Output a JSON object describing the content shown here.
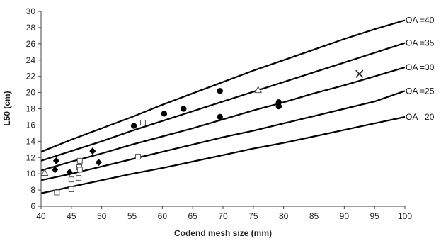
{
  "chart_data": {
    "type": "scatter",
    "xlabel": "Codend mesh size (mm)",
    "ylabel": "L50 (cm)",
    "xlim": [
      40,
      100
    ],
    "ylim": [
      6,
      30
    ],
    "x_ticks": [
      "40",
      "45",
      "50",
      "55",
      "60",
      "65",
      "70",
      "75",
      "80",
      "85",
      "90",
      "95",
      "100"
    ],
    "y_ticks": [
      "6",
      "8",
      "10",
      "12",
      "14",
      "16",
      "18",
      "20",
      "22",
      "24",
      "26",
      "28",
      "30"
    ],
    "grid": false,
    "curves": [
      {
        "label": "OA =40",
        "points": [
          [
            40,
            12.7
          ],
          [
            45,
            14.2
          ],
          [
            50,
            15.6
          ],
          [
            55,
            17.0
          ],
          [
            60,
            18.5
          ],
          [
            65,
            19.9
          ],
          [
            70,
            21.3
          ],
          [
            75,
            22.7
          ],
          [
            80,
            24.0
          ],
          [
            85,
            25.3
          ],
          [
            90,
            26.6
          ],
          [
            95,
            27.8
          ],
          [
            100,
            28.9
          ]
        ]
      },
      {
        "label": "OA =35",
        "points": [
          [
            40,
            11.6
          ],
          [
            45,
            12.8
          ],
          [
            50,
            14.0
          ],
          [
            55,
            15.3
          ],
          [
            60,
            16.5
          ],
          [
            65,
            17.7
          ],
          [
            70,
            18.9
          ],
          [
            75,
            20.1
          ],
          [
            80,
            21.3
          ],
          [
            85,
            22.5
          ],
          [
            90,
            23.7
          ],
          [
            95,
            24.9
          ],
          [
            100,
            26.1
          ]
        ]
      },
      {
        "label": "OA =30",
        "points": [
          [
            40,
            10.4
          ],
          [
            45,
            11.5
          ],
          [
            50,
            12.5
          ],
          [
            55,
            13.6
          ],
          [
            60,
            14.6
          ],
          [
            65,
            15.6
          ],
          [
            70,
            16.7
          ],
          [
            75,
            17.8
          ],
          [
            80,
            18.8
          ],
          [
            85,
            19.9
          ],
          [
            90,
            20.9
          ],
          [
            95,
            22.0
          ],
          [
            100,
            23.1
          ]
        ]
      },
      {
        "label": "OA =25",
        "points": [
          [
            40,
            9.2
          ],
          [
            45,
            10.0
          ],
          [
            50,
            10.9
          ],
          [
            55,
            11.8
          ],
          [
            60,
            12.7
          ],
          [
            65,
            13.6
          ],
          [
            70,
            14.5
          ],
          [
            75,
            15.3
          ],
          [
            80,
            16.2
          ],
          [
            85,
            17.1
          ],
          [
            90,
            18.0
          ],
          [
            95,
            18.9
          ],
          [
            100,
            20.2
          ]
        ]
      },
      {
        "label": "OA =20",
        "points": [
          [
            40,
            7.6
          ],
          [
            45,
            8.4
          ],
          [
            50,
            9.2
          ],
          [
            55,
            10.0
          ],
          [
            60,
            10.7
          ],
          [
            65,
            11.5
          ],
          [
            70,
            12.3
          ],
          [
            75,
            13.1
          ],
          [
            80,
            13.8
          ],
          [
            85,
            14.6
          ],
          [
            90,
            15.4
          ],
          [
            95,
            16.2
          ],
          [
            100,
            17.0
          ]
        ]
      }
    ],
    "series": [
      {
        "marker": "filled-diamond",
        "points": [
          [
            42.5,
            11.6
          ],
          [
            42.3,
            10.5
          ],
          [
            44.7,
            10.2
          ],
          [
            48.5,
            12.8
          ],
          [
            49.5,
            11.4
          ]
        ]
      },
      {
        "marker": "filled-circle",
        "points": [
          [
            55.3,
            15.9
          ],
          [
            60.3,
            17.4
          ],
          [
            63.5,
            18.0
          ],
          [
            69.5,
            20.2
          ],
          [
            69.5,
            17.0
          ],
          [
            79.2,
            18.8
          ],
          [
            79.2,
            18.3
          ]
        ]
      },
      {
        "marker": "open-square",
        "points": [
          [
            42.6,
            7.7
          ],
          [
            45.0,
            8.1
          ],
          [
            45.0,
            9.3
          ],
          [
            46.2,
            9.5
          ],
          [
            46.3,
            10.8
          ],
          [
            46.4,
            11.6
          ],
          [
            46.4,
            10.5
          ],
          [
            56.0,
            12.1
          ],
          [
            56.8,
            16.3
          ]
        ]
      },
      {
        "marker": "open-triangle",
        "points": [
          [
            40.6,
            10.1
          ],
          [
            75.8,
            20.3
          ]
        ]
      },
      {
        "marker": "cross",
        "points": [
          [
            92.5,
            22.3
          ]
        ]
      }
    ]
  }
}
